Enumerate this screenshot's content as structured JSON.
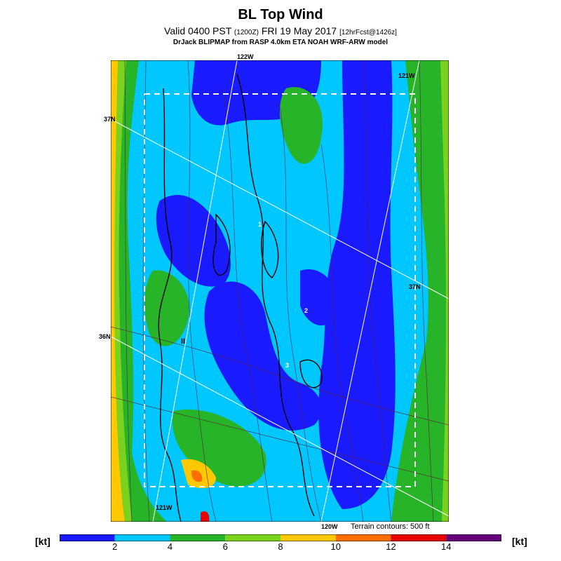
{
  "header": {
    "title": "BL Top Wind",
    "valid_main": "Valid 0400 PST",
    "valid_utc": "(1200Z)",
    "valid_date": "FRI 19 May 2017",
    "forecast_info": "[12hrFcst@1426z]",
    "credit": "DrJack BLIPMAP from RASP 4.0km ETA NOAH WRF-ARW model"
  },
  "map": {
    "coord_labels": {
      "lon_122w": "122W",
      "lon_121w_top": "121W",
      "lon_121w_bottom": "121W",
      "lon_120w": "120W",
      "lat_37n_left": "37N",
      "lat_37n_right": "37N",
      "lat_36n": "36N"
    },
    "contour_labels": [
      "1",
      "2",
      "3",
      "II"
    ],
    "terrain_note": "Terrain contours: 500 ft"
  },
  "legend": {
    "unit_left": "[kt]",
    "unit_right": "[kt]",
    "ticks": [
      "2",
      "4",
      "6",
      "8",
      "10",
      "12",
      "14"
    ],
    "colors": [
      "#1a1aff",
      "#00c8ff",
      "#28b428",
      "#7ad21e",
      "#ffc800",
      "#ff6e00",
      "#e60000",
      "#640078"
    ]
  }
}
